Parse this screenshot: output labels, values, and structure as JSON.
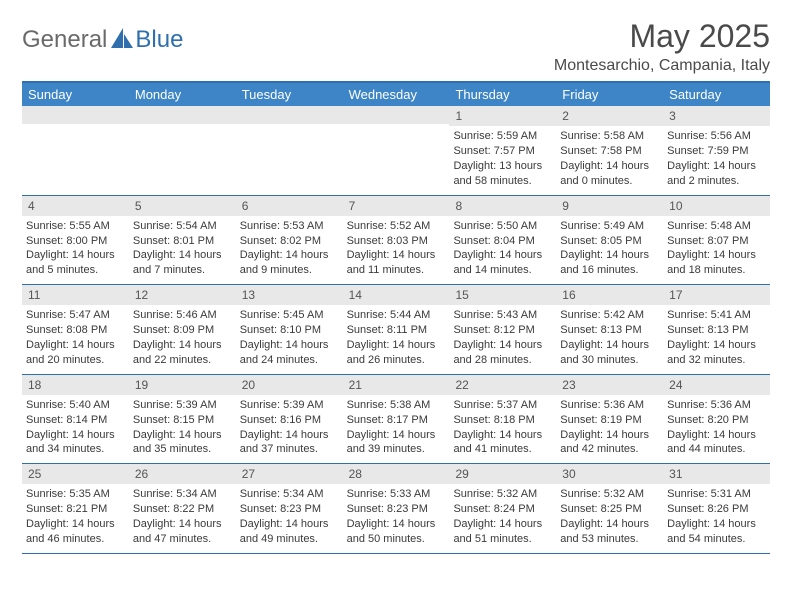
{
  "logo": {
    "text1": "General",
    "text2": "Blue"
  },
  "title": "May 2025",
  "location": "Montesarchio, Campania, Italy",
  "colors": {
    "header_bar": "#3d85c6",
    "rule": "#2f6fae",
    "daynum_bg": "#e8e8e8",
    "text": "#3a3a3a",
    "title_text": "#4a4a4a"
  },
  "dow": [
    "Sunday",
    "Monday",
    "Tuesday",
    "Wednesday",
    "Thursday",
    "Friday",
    "Saturday"
  ],
  "weeks": [
    [
      null,
      null,
      null,
      null,
      {
        "n": "1",
        "sunrise": "Sunrise: 5:59 AM",
        "sunset": "Sunset: 7:57 PM",
        "daylight": "Daylight: 13 hours and 58 minutes."
      },
      {
        "n": "2",
        "sunrise": "Sunrise: 5:58 AM",
        "sunset": "Sunset: 7:58 PM",
        "daylight": "Daylight: 14 hours and 0 minutes."
      },
      {
        "n": "3",
        "sunrise": "Sunrise: 5:56 AM",
        "sunset": "Sunset: 7:59 PM",
        "daylight": "Daylight: 14 hours and 2 minutes."
      }
    ],
    [
      {
        "n": "4",
        "sunrise": "Sunrise: 5:55 AM",
        "sunset": "Sunset: 8:00 PM",
        "daylight": "Daylight: 14 hours and 5 minutes."
      },
      {
        "n": "5",
        "sunrise": "Sunrise: 5:54 AM",
        "sunset": "Sunset: 8:01 PM",
        "daylight": "Daylight: 14 hours and 7 minutes."
      },
      {
        "n": "6",
        "sunrise": "Sunrise: 5:53 AM",
        "sunset": "Sunset: 8:02 PM",
        "daylight": "Daylight: 14 hours and 9 minutes."
      },
      {
        "n": "7",
        "sunrise": "Sunrise: 5:52 AM",
        "sunset": "Sunset: 8:03 PM",
        "daylight": "Daylight: 14 hours and 11 minutes."
      },
      {
        "n": "8",
        "sunrise": "Sunrise: 5:50 AM",
        "sunset": "Sunset: 8:04 PM",
        "daylight": "Daylight: 14 hours and 14 minutes."
      },
      {
        "n": "9",
        "sunrise": "Sunrise: 5:49 AM",
        "sunset": "Sunset: 8:05 PM",
        "daylight": "Daylight: 14 hours and 16 minutes."
      },
      {
        "n": "10",
        "sunrise": "Sunrise: 5:48 AM",
        "sunset": "Sunset: 8:07 PM",
        "daylight": "Daylight: 14 hours and 18 minutes."
      }
    ],
    [
      {
        "n": "11",
        "sunrise": "Sunrise: 5:47 AM",
        "sunset": "Sunset: 8:08 PM",
        "daylight": "Daylight: 14 hours and 20 minutes."
      },
      {
        "n": "12",
        "sunrise": "Sunrise: 5:46 AM",
        "sunset": "Sunset: 8:09 PM",
        "daylight": "Daylight: 14 hours and 22 minutes."
      },
      {
        "n": "13",
        "sunrise": "Sunrise: 5:45 AM",
        "sunset": "Sunset: 8:10 PM",
        "daylight": "Daylight: 14 hours and 24 minutes."
      },
      {
        "n": "14",
        "sunrise": "Sunrise: 5:44 AM",
        "sunset": "Sunset: 8:11 PM",
        "daylight": "Daylight: 14 hours and 26 minutes."
      },
      {
        "n": "15",
        "sunrise": "Sunrise: 5:43 AM",
        "sunset": "Sunset: 8:12 PM",
        "daylight": "Daylight: 14 hours and 28 minutes."
      },
      {
        "n": "16",
        "sunrise": "Sunrise: 5:42 AM",
        "sunset": "Sunset: 8:13 PM",
        "daylight": "Daylight: 14 hours and 30 minutes."
      },
      {
        "n": "17",
        "sunrise": "Sunrise: 5:41 AM",
        "sunset": "Sunset: 8:13 PM",
        "daylight": "Daylight: 14 hours and 32 minutes."
      }
    ],
    [
      {
        "n": "18",
        "sunrise": "Sunrise: 5:40 AM",
        "sunset": "Sunset: 8:14 PM",
        "daylight": "Daylight: 14 hours and 34 minutes."
      },
      {
        "n": "19",
        "sunrise": "Sunrise: 5:39 AM",
        "sunset": "Sunset: 8:15 PM",
        "daylight": "Daylight: 14 hours and 35 minutes."
      },
      {
        "n": "20",
        "sunrise": "Sunrise: 5:39 AM",
        "sunset": "Sunset: 8:16 PM",
        "daylight": "Daylight: 14 hours and 37 minutes."
      },
      {
        "n": "21",
        "sunrise": "Sunrise: 5:38 AM",
        "sunset": "Sunset: 8:17 PM",
        "daylight": "Daylight: 14 hours and 39 minutes."
      },
      {
        "n": "22",
        "sunrise": "Sunrise: 5:37 AM",
        "sunset": "Sunset: 8:18 PM",
        "daylight": "Daylight: 14 hours and 41 minutes."
      },
      {
        "n": "23",
        "sunrise": "Sunrise: 5:36 AM",
        "sunset": "Sunset: 8:19 PM",
        "daylight": "Daylight: 14 hours and 42 minutes."
      },
      {
        "n": "24",
        "sunrise": "Sunrise: 5:36 AM",
        "sunset": "Sunset: 8:20 PM",
        "daylight": "Daylight: 14 hours and 44 minutes."
      }
    ],
    [
      {
        "n": "25",
        "sunrise": "Sunrise: 5:35 AM",
        "sunset": "Sunset: 8:21 PM",
        "daylight": "Daylight: 14 hours and 46 minutes."
      },
      {
        "n": "26",
        "sunrise": "Sunrise: 5:34 AM",
        "sunset": "Sunset: 8:22 PM",
        "daylight": "Daylight: 14 hours and 47 minutes."
      },
      {
        "n": "27",
        "sunrise": "Sunrise: 5:34 AM",
        "sunset": "Sunset: 8:23 PM",
        "daylight": "Daylight: 14 hours and 49 minutes."
      },
      {
        "n": "28",
        "sunrise": "Sunrise: 5:33 AM",
        "sunset": "Sunset: 8:23 PM",
        "daylight": "Daylight: 14 hours and 50 minutes."
      },
      {
        "n": "29",
        "sunrise": "Sunrise: 5:32 AM",
        "sunset": "Sunset: 8:24 PM",
        "daylight": "Daylight: 14 hours and 51 minutes."
      },
      {
        "n": "30",
        "sunrise": "Sunrise: 5:32 AM",
        "sunset": "Sunset: 8:25 PM",
        "daylight": "Daylight: 14 hours and 53 minutes."
      },
      {
        "n": "31",
        "sunrise": "Sunrise: 5:31 AM",
        "sunset": "Sunset: 8:26 PM",
        "daylight": "Daylight: 14 hours and 54 minutes."
      }
    ]
  ]
}
